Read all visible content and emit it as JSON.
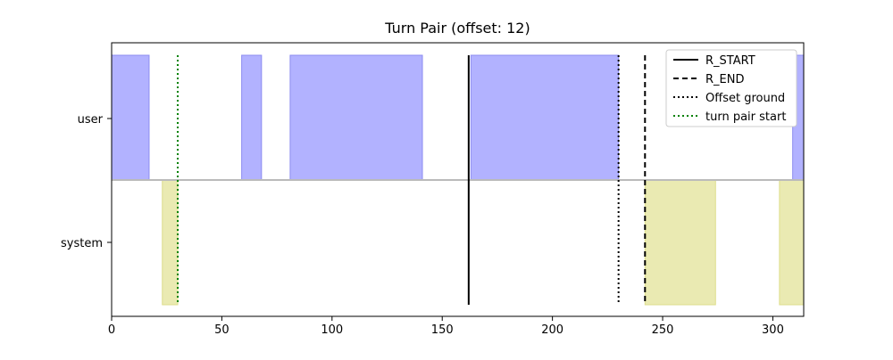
{
  "chart_data": {
    "type": "area",
    "title": "Turn Pair (offset: 12)",
    "xlabel": "",
    "ylabel": "",
    "xlim": [
      0,
      314
    ],
    "xticks": [
      0,
      50,
      100,
      150,
      200,
      250,
      300
    ],
    "ycategories": [
      "user",
      "system"
    ],
    "grid": false,
    "legend_position": "top-right",
    "series": [
      {
        "name": "user",
        "color": "#b2b2ff",
        "edge_color": "#8c8cf0",
        "segments": [
          [
            0,
            17
          ],
          [
            59,
            68
          ],
          [
            81,
            141
          ],
          [
            163,
            230
          ],
          [
            309,
            314
          ]
        ]
      },
      {
        "name": "system",
        "color": "#eaeab2",
        "edge_color": "#dede8c",
        "segments": [
          [
            23,
            30
          ],
          [
            242,
            274
          ],
          [
            303,
            314
          ]
        ]
      }
    ],
    "baseline_color": "#bbbbbb",
    "vertical_lines": [
      {
        "label": "R_START",
        "x": 162,
        "style": "solid",
        "color": "#000000",
        "span": "full"
      },
      {
        "label": "R_END",
        "x": 242,
        "style": "dashed",
        "color": "#000000",
        "span": "full"
      },
      {
        "label": "Offset ground",
        "x": 230,
        "style": "dotted",
        "color": "#000000",
        "span": "full"
      },
      {
        "label": "turn pair start",
        "x": 30,
        "style": "dotted",
        "color": "#008000",
        "span": "full"
      }
    ]
  }
}
